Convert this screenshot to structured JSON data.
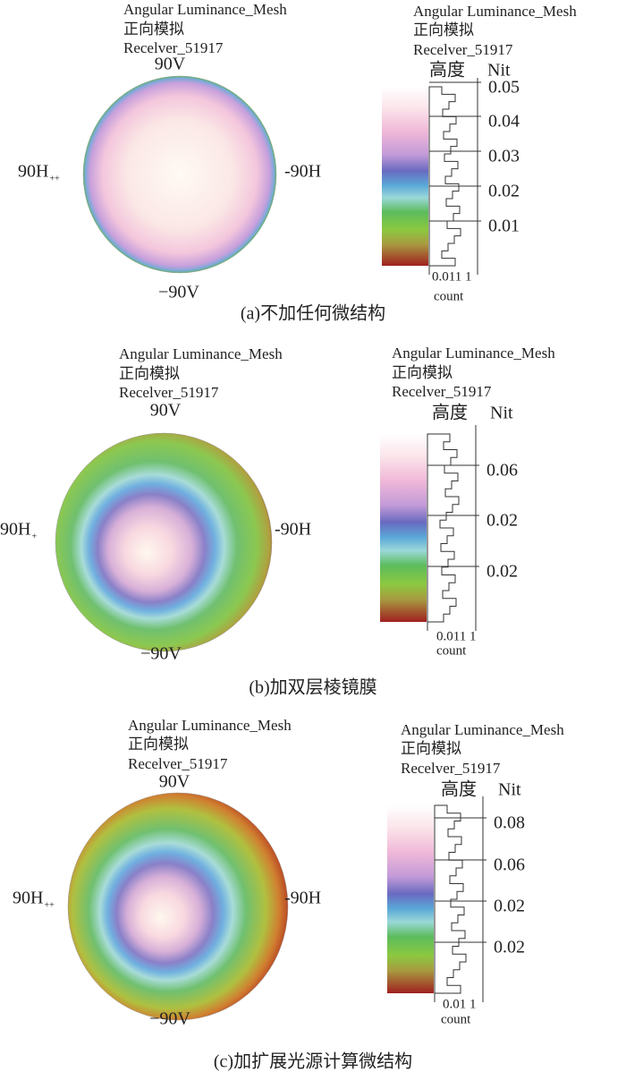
{
  "panels": [
    {
      "title": "Angular Luminance_Mesh",
      "subtitle": "正向模拟",
      "receiver": "Recelver_51917",
      "top": "90V",
      "bottom": "−90V",
      "left": "90H",
      "left_sub": "++",
      "right": "-90H",
      "legend_title": "Angular Luminance_Mesh",
      "legend_subtitle": "正向模拟",
      "legend_receiver": "Recelver_51917",
      "height_label": "高度",
      "unit": "Nit",
      "ticks": [
        "0.05",
        "0.04",
        "0.03",
        "0.02",
        "0.01"
      ],
      "count_ticks": "0.011 1",
      "count_label": "count",
      "caption": "(a)不加任何微结构"
    },
    {
      "title": "Angular Luminance_Mesh",
      "subtitle": "正向模拟",
      "receiver": "Recelver_51917",
      "top": "90V",
      "bottom": "−90V",
      "left": "90H",
      "left_sub": "+",
      "right": "-90H",
      "legend_title": "Angular Luminance_Mesh",
      "legend_subtitle": "正向模拟",
      "legend_receiver": "Recelver_51917",
      "height_label": "高度",
      "unit": "Nit",
      "ticks": [
        "0.06",
        "0.02",
        "0.02"
      ],
      "count_ticks": "0.011 1",
      "count_label": "count",
      "caption": "(b)加双层棱镜膜"
    },
    {
      "title": "Angular Luminance_Mesh",
      "subtitle": "正向模拟",
      "receiver": "Recelver_51917",
      "top": "90V",
      "bottom": "−90V",
      "left": "90H",
      "left_sub": "++",
      "right": "-90H",
      "legend_title": "Angular Luminance_Mesh",
      "legend_subtitle": "正向模拟",
      "legend_receiver": "Recelver_51917",
      "height_label": "高度",
      "unit": "Nit",
      "ticks": [
        "0.08",
        "0.06",
        "0.02",
        "0.02"
      ],
      "count_ticks": "0.01 1",
      "count_label": "count",
      "caption": "(c)加扩展光源计算微结构"
    }
  ]
}
